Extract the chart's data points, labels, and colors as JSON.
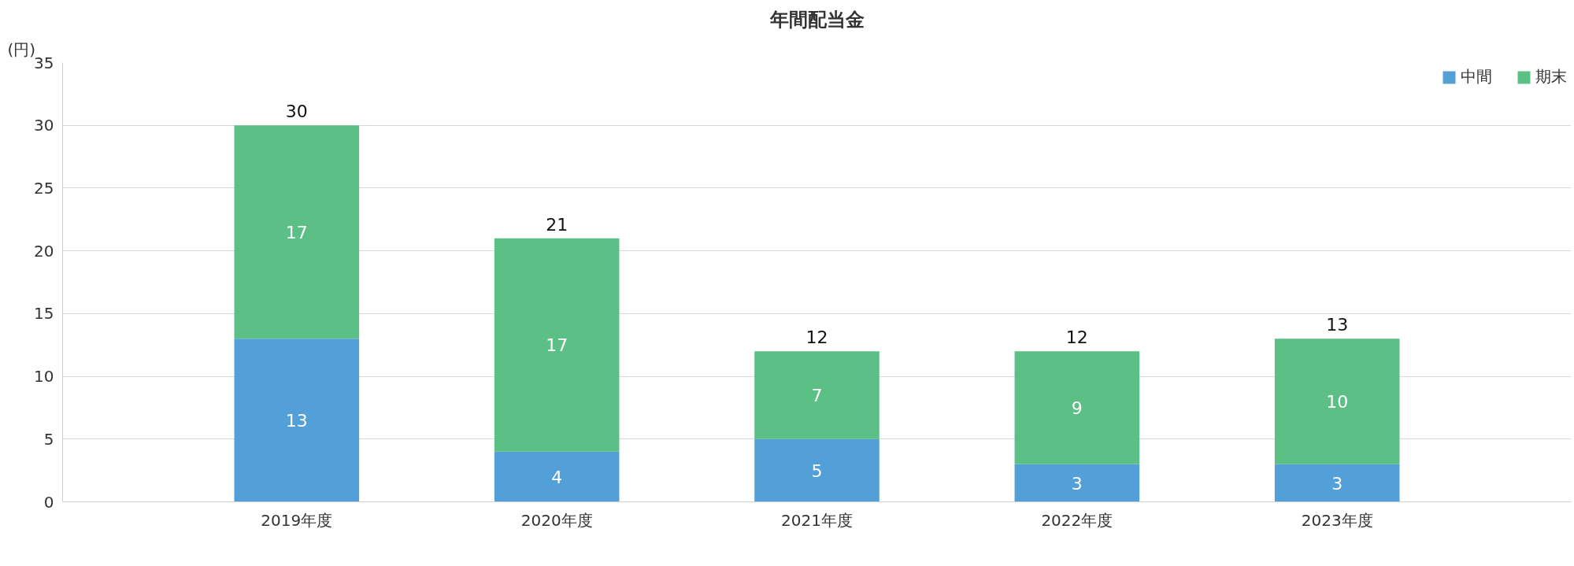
{
  "chart_data": {
    "type": "bar",
    "title": "年間配当金",
    "ylabel": "(円)",
    "categories": [
      "2019年度",
      "2020年度",
      "2021年度",
      "2022年度",
      "2023年度"
    ],
    "series": [
      {
        "name": "中間",
        "color": "#539fd8",
        "values": [
          13,
          4,
          5,
          3,
          3
        ]
      },
      {
        "name": "期末",
        "color": "#5bbf86",
        "values": [
          17,
          17,
          7,
          9,
          10
        ]
      }
    ],
    "stacked": true,
    "ylim": [
      0,
      35
    ],
    "yticks": [
      0,
      5,
      10,
      15,
      20,
      25,
      30,
      35
    ],
    "grid": "y",
    "legend": "top right",
    "data_labels": true,
    "totals": [
      "30",
      "21",
      "12",
      "12",
      "13"
    ]
  }
}
